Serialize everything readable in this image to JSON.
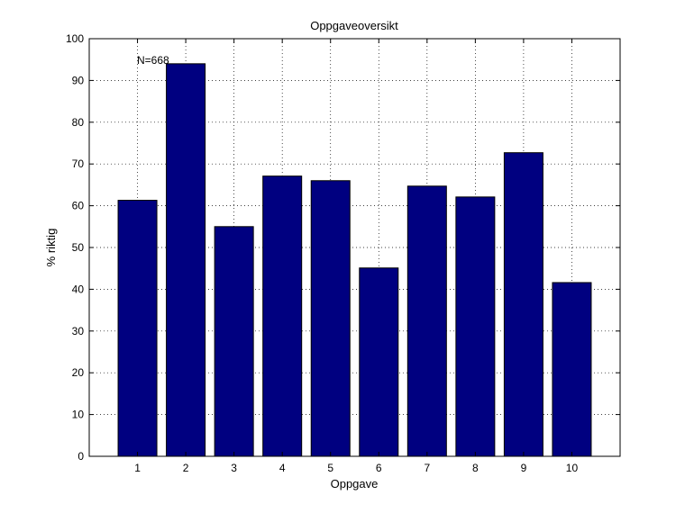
{
  "colors": {
    "bar_fill": "#000080",
    "bar_stroke": "#000000",
    "axes": "#000000",
    "background": "#ffffff"
  },
  "chart_data": {
    "type": "bar",
    "title": "Oppgaveoversikt",
    "xlabel": "Oppgave",
    "ylabel": "% riktig",
    "annotation": "N=668",
    "categories": [
      "1",
      "2",
      "3",
      "4",
      "5",
      "6",
      "7",
      "8",
      "9",
      "10"
    ],
    "values": [
      61.3,
      94.0,
      55.0,
      67.1,
      66.0,
      45.1,
      64.7,
      62.1,
      72.7,
      41.6
    ],
    "ylim": [
      0,
      100
    ],
    "yticks": [
      0,
      10,
      20,
      30,
      40,
      50,
      60,
      70,
      80,
      90,
      100
    ],
    "ytick_labels": [
      "0",
      "10",
      "20",
      "30",
      "40",
      "50",
      "60",
      "70",
      "80",
      "90",
      "100"
    ],
    "grid": true,
    "legend": "none"
  }
}
